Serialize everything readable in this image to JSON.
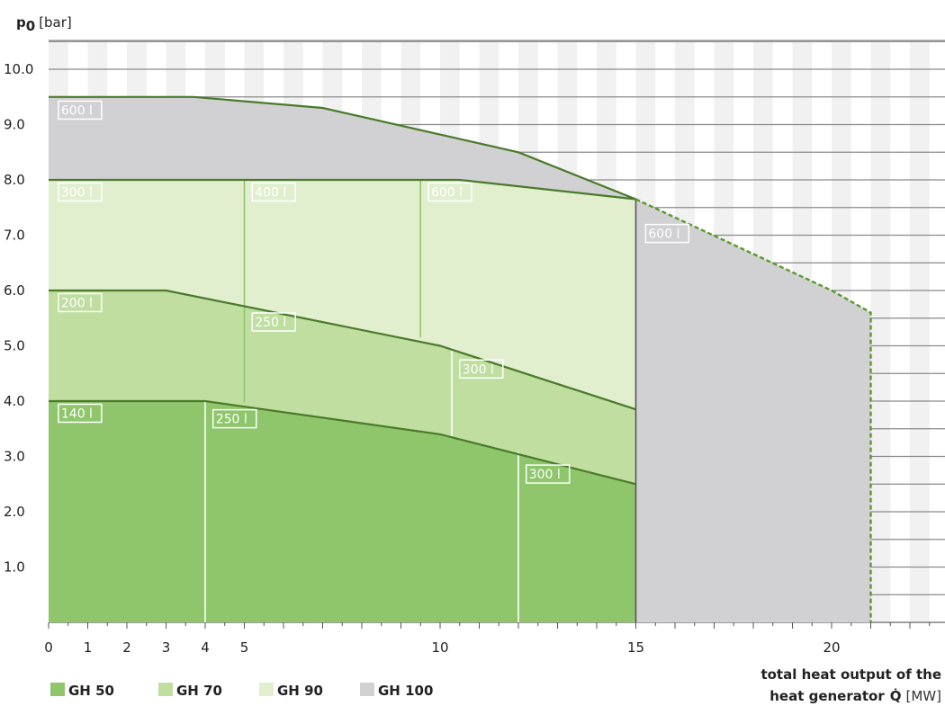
{
  "chart_data": {
    "type": "area",
    "ylabel": {
      "symbol": "p",
      "subscript": "0",
      "unit": "[bar]"
    },
    "xlabel": {
      "line1": "total heat output of the",
      "line2": "heat generator",
      "symbol": "Q̇",
      "unit": "[MW]"
    },
    "xlim": [
      0,
      22.5
    ],
    "ylim": [
      0,
      10.0
    ],
    "x_ticks": [
      0,
      1,
      2,
      3,
      4,
      5,
      10,
      15,
      20
    ],
    "y_ticks": [
      {
        "value": 1.0,
        "label": "1.0"
      },
      {
        "value": 2.0,
        "label": "2.0"
      },
      {
        "value": 3.0,
        "label": "3.0"
      },
      {
        "value": 4.0,
        "label": "4.0"
      },
      {
        "value": 5.0,
        "label": "5.0"
      },
      {
        "value": 6.0,
        "label": "6.0"
      },
      {
        "value": 7.0,
        "label": "7.0"
      },
      {
        "value": 8.0,
        "label": "8.0"
      },
      {
        "value": 9.0,
        "label": "9.0"
      },
      {
        "value": 10.0,
        "label": "10.0"
      }
    ],
    "grid": "horizontal lines every 0.5 bar, alternating shaded vertical bands",
    "legend_position": "bottom-left",
    "series": [
      {
        "name": "GH 100",
        "color": "#d1d1d3",
        "boundary": [
          [
            0,
            9.5
          ],
          [
            3.7,
            9.5
          ],
          [
            7.0,
            9.3
          ],
          [
            12.0,
            8.5
          ],
          [
            15,
            7.65
          ],
          [
            20,
            6.0
          ],
          [
            21,
            5.6
          ],
          [
            21,
            0
          ]
        ],
        "upper": [
          [
            0,
            9.5
          ],
          [
            3.7,
            9.5
          ],
          [
            7.0,
            9.3
          ],
          [
            12.0,
            8.5
          ],
          [
            15,
            7.65
          ]
        ],
        "dashed_extension": [
          [
            15,
            7.65
          ],
          [
            20,
            6.0
          ],
          [
            21,
            5.6
          ],
          [
            21,
            0
          ]
        ]
      },
      {
        "name": "GH 90",
        "color": "#e1efcf",
        "boundary": [
          [
            0,
            8.0
          ],
          [
            10.5,
            8.0
          ],
          [
            15,
            7.65
          ],
          [
            15,
            0
          ]
        ],
        "upper": [
          [
            0,
            8.0
          ],
          [
            10.5,
            8.0
          ],
          [
            15,
            7.65
          ]
        ]
      },
      {
        "name": "GH 70",
        "color": "#bfdea0",
        "boundary": [
          [
            0,
            6.0
          ],
          [
            3.0,
            6.0
          ],
          [
            10.0,
            5.0
          ],
          [
            15,
            3.85
          ],
          [
            15,
            0
          ]
        ],
        "upper": [
          [
            0,
            6.0
          ],
          [
            3.0,
            6.0
          ],
          [
            10.0,
            5.0
          ],
          [
            15,
            3.85
          ]
        ]
      },
      {
        "name": "GH 50",
        "color": "#8fc66c",
        "boundary": [
          [
            0,
            4.0
          ],
          [
            4.0,
            4.0
          ],
          [
            10.0,
            3.4
          ],
          [
            15,
            2.5
          ],
          [
            15,
            0
          ]
        ],
        "upper": [
          [
            0,
            4.0
          ],
          [
            4.0,
            4.0
          ],
          [
            10.0,
            3.4
          ],
          [
            15,
            2.5
          ]
        ]
      }
    ],
    "dividers": [
      {
        "x": 4.0,
        "y0": 0,
        "y1": 4.0,
        "color": "#ffffff"
      },
      {
        "x": 12.0,
        "y0": 0,
        "y1": 3.08,
        "color": "#ffffff"
      },
      {
        "x": 5.0,
        "y0": 3.98,
        "y1": 8.0,
        "color": "#8fc66c"
      },
      {
        "x": 10.3,
        "y0": 3.35,
        "y1": 4.98,
        "color": "#ffffff"
      },
      {
        "x": 9.5,
        "y0": 5.15,
        "y1": 8.0,
        "color": "#8fc66c"
      },
      {
        "x": 15.0,
        "y0": 0,
        "y1": 7.65,
        "color": "#555555"
      }
    ],
    "lines": [
      {
        "points": [
          [
            10.5,
            8.0
          ],
          [
            15,
            7.65
          ]
        ],
        "color": "#444444"
      }
    ],
    "annotations": [
      {
        "text": "600 l",
        "x": 0.25,
        "y": 9.18
      },
      {
        "text": "300 l",
        "x": 0.25,
        "y": 7.7
      },
      {
        "text": "400 l",
        "x": 5.2,
        "y": 7.7
      },
      {
        "text": "600 l",
        "x": 9.7,
        "y": 7.7
      },
      {
        "text": "600 l",
        "x": 15.25,
        "y": 6.95
      },
      {
        "text": "200 l",
        "x": 0.25,
        "y": 5.7
      },
      {
        "text": "250 l",
        "x": 5.2,
        "y": 5.35
      },
      {
        "text": "300 l",
        "x": 10.5,
        "y": 4.5
      },
      {
        "text": "140 l",
        "x": 0.25,
        "y": 3.7
      },
      {
        "text": "250 l",
        "x": 4.2,
        "y": 3.6
      },
      {
        "text": "300 l",
        "x": 12.2,
        "y": 2.6
      }
    ],
    "legend": [
      {
        "label": "GH 50",
        "color": "#8fc66c"
      },
      {
        "label": "GH 70",
        "color": "#bfdea0"
      },
      {
        "label": "GH 90",
        "color": "#e1efcf"
      },
      {
        "label": "GH 100",
        "color": "#d1d1d3"
      }
    ]
  }
}
